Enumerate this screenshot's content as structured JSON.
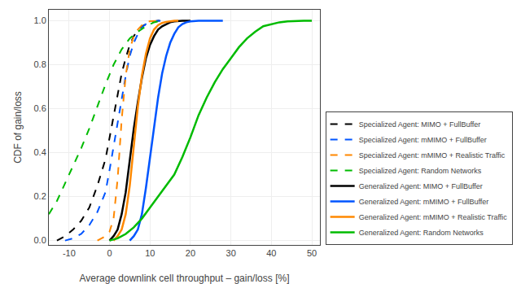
{
  "chart_data": {
    "type": "line",
    "x_label": "Average downlink cell throughput – gain/loss [%]",
    "y_label": "CDF of gain/loss",
    "xlim": [
      -15,
      52
    ],
    "ylim": [
      -0.02,
      1.05
    ],
    "xticks": [
      -10,
      0,
      10,
      20,
      30,
      40,
      50
    ],
    "yticks": [
      {
        "value": 0.0,
        "label": "0.0"
      },
      0.2,
      0.4,
      0.6,
      0.8,
      {
        "value": 1.0,
        "label": "1.0"
      }
    ],
    "grid": true,
    "legend": "lower right",
    "series": [
      {
        "name": "Specialized Agent: MIMO + FullBuffer",
        "color": "#000000",
        "line_style": "dashed",
        "x": [
          -13,
          -11,
          -9,
          -7,
          -5,
          -3,
          -1,
          0,
          1,
          2,
          3,
          4,
          5,
          6,
          7,
          8,
          9,
          10,
          11,
          12,
          14
        ],
        "values": [
          0.0,
          0.02,
          0.05,
          0.09,
          0.15,
          0.25,
          0.37,
          0.47,
          0.57,
          0.67,
          0.76,
          0.83,
          0.89,
          0.93,
          0.96,
          0.975,
          0.985,
          0.993,
          0.997,
          1.0,
          1.0
        ]
      },
      {
        "name": "Specialized Agent: mMIMO + FullBuffer",
        "color": "#0055ff",
        "line_style": "dashed",
        "x": [
          -11,
          -9,
          -7,
          -5,
          -3,
          -1,
          0,
          1,
          2,
          3,
          4,
          5,
          6,
          7,
          8,
          9,
          10,
          11,
          12,
          14
        ],
        "values": [
          0.0,
          0.01,
          0.03,
          0.07,
          0.13,
          0.22,
          0.32,
          0.43,
          0.54,
          0.65,
          0.75,
          0.84,
          0.9,
          0.94,
          0.97,
          0.985,
          0.993,
          0.997,
          1.0,
          1.0
        ]
      },
      {
        "name": "Specialized Agent: mMIMO + Realistic Traffic",
        "color": "#ff8800",
        "line_style": "dashed",
        "x": [
          -3,
          -2,
          -1,
          0,
          1,
          2,
          3,
          4,
          5,
          6,
          7,
          8,
          9,
          10,
          11,
          12
        ],
        "values": [
          0.0,
          0.01,
          0.02,
          0.04,
          0.1,
          0.28,
          0.55,
          0.75,
          0.87,
          0.93,
          0.96,
          0.98,
          0.993,
          0.998,
          1.0,
          1.0
        ]
      },
      {
        "name": "Specialized Agent: Random Networks",
        "color": "#00bb00",
        "line_style": "dashed",
        "x": [
          -15,
          -13,
          -11,
          -9,
          -7,
          -5,
          -3,
          -1,
          1,
          3,
          5,
          7,
          9,
          11,
          13
        ],
        "values": [
          0.12,
          0.18,
          0.26,
          0.34,
          0.42,
          0.51,
          0.61,
          0.71,
          0.8,
          0.87,
          0.92,
          0.95,
          0.975,
          0.993,
          1.0
        ]
      },
      {
        "name": "Generalized Agent: MIMO + FullBuffer",
        "color": "#000000",
        "line_style": "solid",
        "x": [
          0,
          1,
          2,
          3,
          4,
          5,
          6,
          7,
          8,
          9,
          10,
          11,
          12,
          13,
          14,
          15,
          16,
          18,
          20
        ],
        "values": [
          0.0,
          0.02,
          0.05,
          0.12,
          0.22,
          0.37,
          0.51,
          0.63,
          0.74,
          0.83,
          0.89,
          0.93,
          0.96,
          0.975,
          0.985,
          0.993,
          0.997,
          1.0,
          1.0
        ]
      },
      {
        "name": "Generalized Agent: mMIMO + FullBuffer",
        "color": "#0055ff",
        "line_style": "solid",
        "x": [
          5,
          6,
          7,
          8,
          9,
          10,
          11,
          12,
          13,
          14,
          15,
          16,
          17,
          18,
          19,
          20,
          22,
          24,
          26,
          28
        ],
        "values": [
          0.0,
          0.02,
          0.05,
          0.12,
          0.24,
          0.38,
          0.52,
          0.65,
          0.76,
          0.84,
          0.9,
          0.94,
          0.97,
          0.985,
          0.993,
          0.997,
          1.0,
          1.0,
          1.0,
          1.0
        ]
      },
      {
        "name": "Generalized Agent: mMIMO + Realistic Traffic",
        "color": "#ff8800",
        "line_style": "solid",
        "x": [
          1,
          2,
          3,
          4,
          5,
          6,
          7,
          8,
          9,
          10,
          11,
          12,
          13,
          14,
          15,
          16,
          17
        ],
        "values": [
          0.0,
          0.02,
          0.05,
          0.12,
          0.25,
          0.43,
          0.61,
          0.75,
          0.85,
          0.92,
          0.96,
          0.98,
          0.99,
          0.995,
          0.998,
          1.0,
          1.0
        ]
      },
      {
        "name": "Generalized Agent: Random Networks",
        "color": "#00bb00",
        "line_style": "solid",
        "x": [
          0,
          2,
          4,
          6,
          8,
          10,
          12,
          14,
          16,
          18,
          20,
          22,
          24,
          26,
          28,
          30,
          32,
          34,
          36,
          38,
          40,
          42,
          44,
          46,
          48,
          50
        ],
        "values": [
          0.0,
          0.01,
          0.03,
          0.06,
          0.1,
          0.15,
          0.2,
          0.25,
          0.3,
          0.38,
          0.47,
          0.57,
          0.65,
          0.72,
          0.78,
          0.83,
          0.88,
          0.92,
          0.95,
          0.975,
          0.985,
          0.993,
          0.997,
          0.999,
          1.0,
          1.0
        ]
      }
    ]
  }
}
